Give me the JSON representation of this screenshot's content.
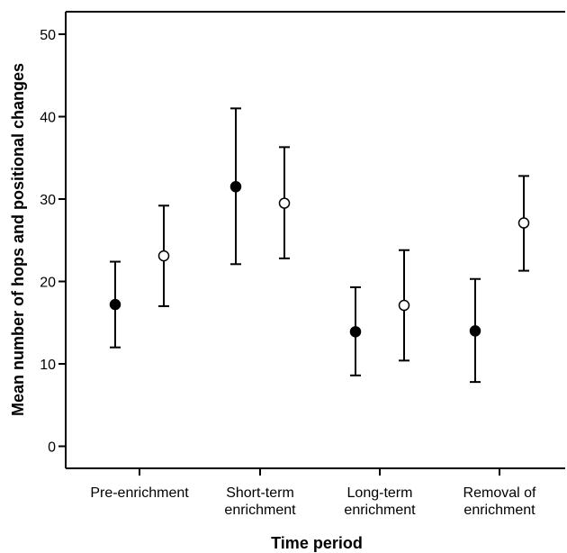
{
  "chart_data": {
    "type": "scatter",
    "subtype": "point-with-error-bars",
    "title": "",
    "xlabel": "Time period",
    "ylabel": "Mean number of hops and positional changes",
    "ylim": [
      0,
      50
    ],
    "yticks": [
      0,
      10,
      20,
      30,
      40,
      50
    ],
    "grid": false,
    "categories": [
      [
        "Pre-enrichment"
      ],
      [
        "Short-term",
        "enrichment"
      ],
      [
        "Long-term",
        "enrichment"
      ],
      [
        "Removal of",
        "enrichment"
      ]
    ],
    "series": [
      {
        "marker": "filled-circle",
        "color": "#000000",
        "values": [
          17.2,
          31.5,
          13.9,
          14.0
        ],
        "lower": [
          12.0,
          22.1,
          8.6,
          7.8
        ],
        "upper": [
          22.4,
          41.0,
          19.3,
          20.3
        ]
      },
      {
        "marker": "open-circle",
        "color": "#000000",
        "values": [
          23.1,
          29.5,
          17.1,
          27.1
        ],
        "lower": [
          17.0,
          22.8,
          10.4,
          21.3
        ],
        "upper": [
          29.2,
          36.3,
          23.8,
          32.8
        ]
      }
    ]
  }
}
